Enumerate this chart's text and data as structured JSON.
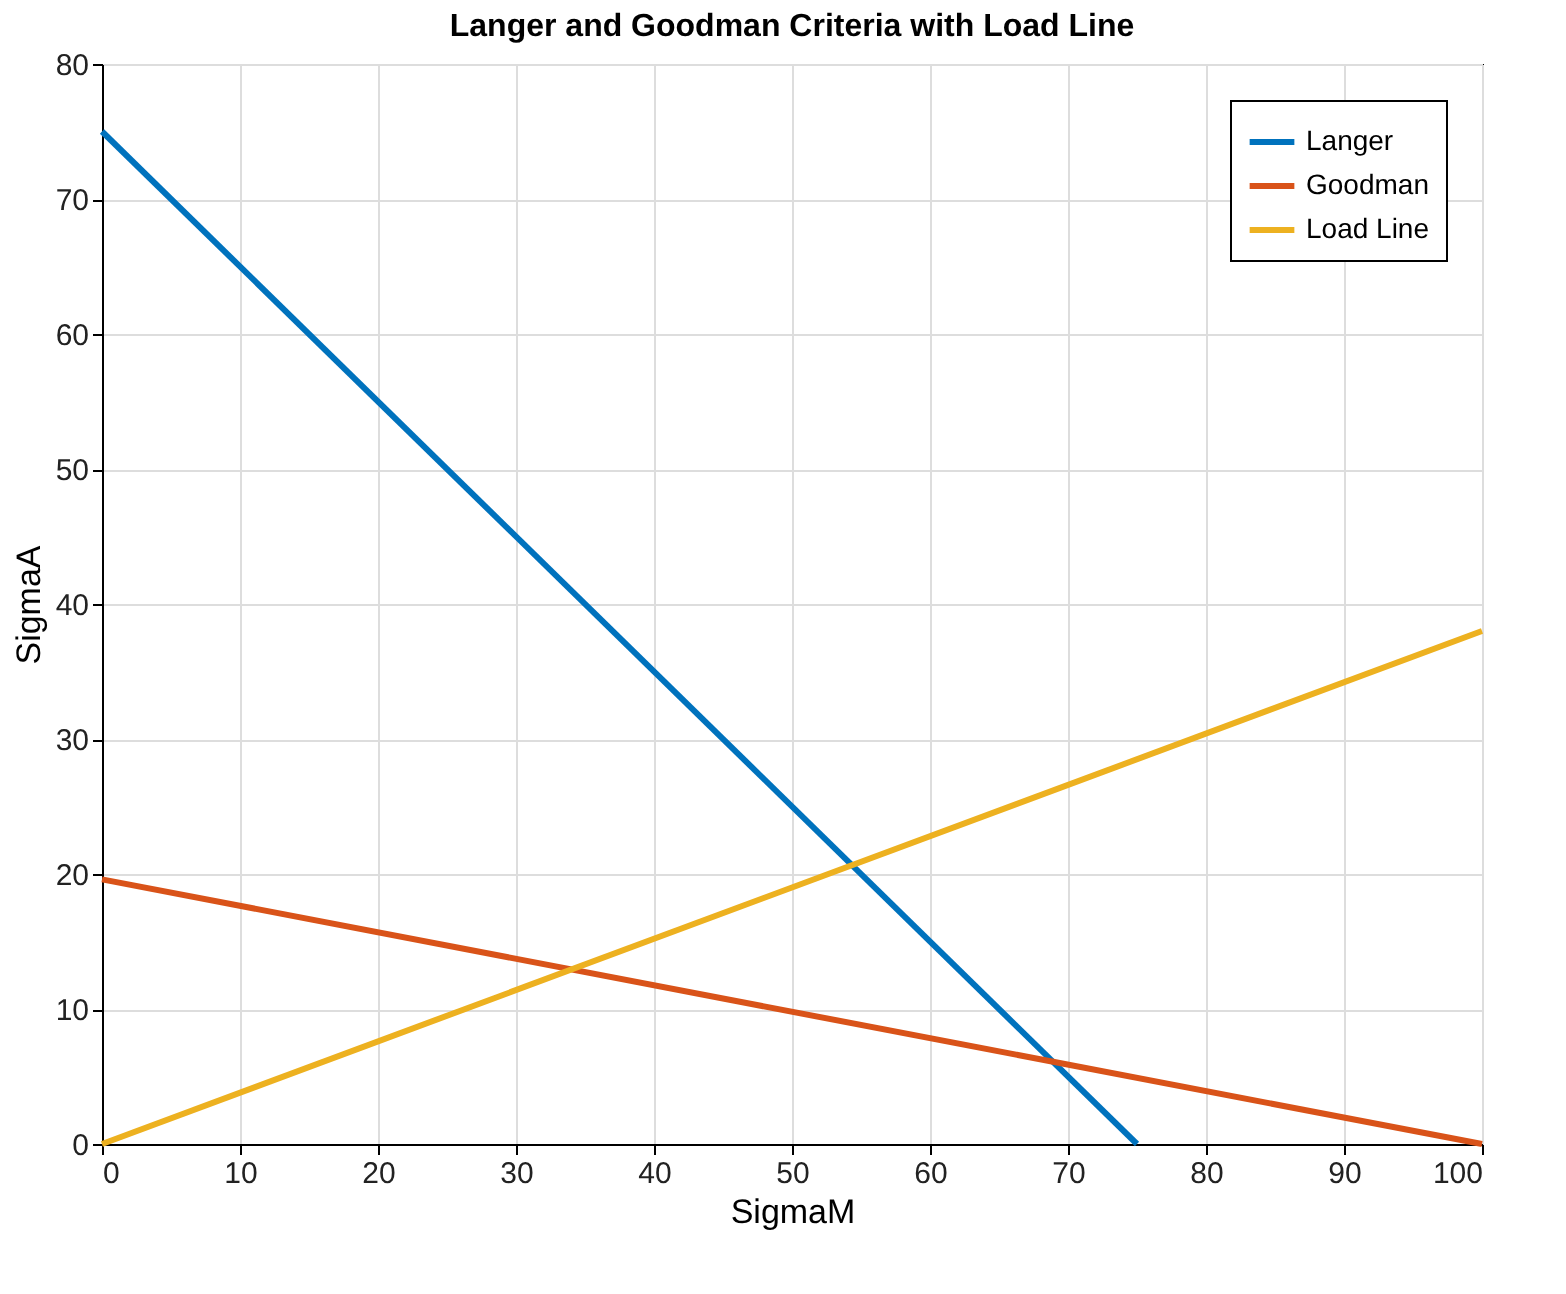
{
  "chart_data": {
    "type": "line",
    "title": "Langer and Goodman Criteria with Load Line",
    "xlabel": "SigmaM",
    "ylabel": "SigmaA",
    "series": [
      {
        "name": "Langer",
        "color": "#0072bd",
        "x": [
          0,
          75
        ],
        "values": [
          75,
          0
        ]
      },
      {
        "name": "Goodman",
        "color": "#d95319",
        "x": [
          0,
          100
        ],
        "values": [
          19.6,
          0
        ]
      },
      {
        "name": "Load Line",
        "color": "#edb120",
        "x": [
          0,
          100
        ],
        "values": [
          0,
          38
        ]
      }
    ],
    "xlim": [
      0,
      100
    ],
    "xticks": [
      0,
      10,
      20,
      30,
      40,
      50,
      60,
      70,
      80,
      90,
      100
    ],
    "ylim": [
      0,
      80
    ],
    "yticks": [
      0,
      10,
      20,
      30,
      40,
      50,
      60,
      70,
      80
    ],
    "grid": true,
    "legend": "top right",
    "line_style": "solid",
    "marker": "none"
  }
}
